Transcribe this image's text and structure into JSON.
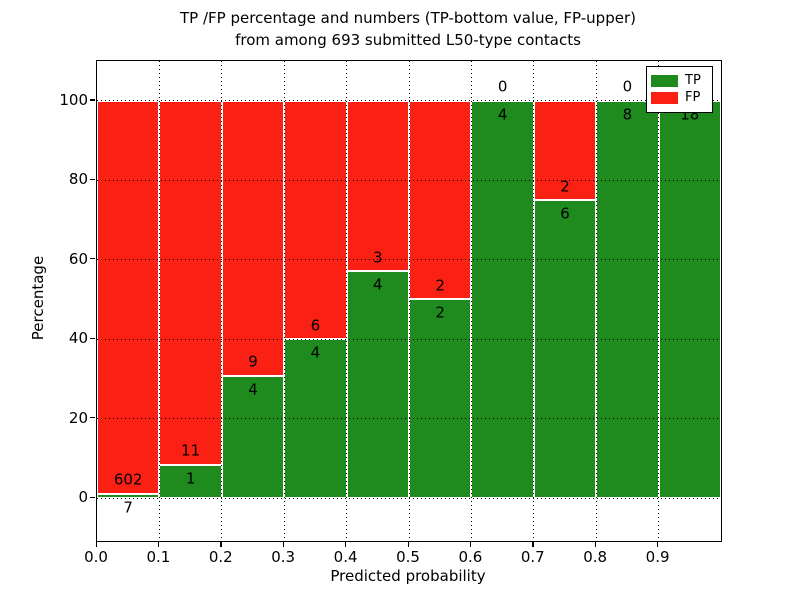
{
  "title": {
    "line1": "TP /FP percentage and numbers (TP-bottom value, FP-upper)",
    "line2": "from among 693 submitted L50-type contacts"
  },
  "axes": {
    "xlabel": "Predicted probability",
    "ylabel": "Percentage"
  },
  "colors": {
    "tp_green": "#1f8b1f",
    "fp_red": "#fb2014",
    "bar_edge": "#ffffff",
    "grid": "#000000"
  },
  "chart_data": {
    "type": "bar",
    "stacked": true,
    "title": "TP /FP percentage and numbers (TP-bottom value, FP-upper) from among 693 submitted L50-type contacts",
    "xlabel": "Predicted probability",
    "ylabel": "Percentage",
    "total_contacts": 693,
    "bin_edges": [
      0.0,
      0.1,
      0.2,
      0.3,
      0.4,
      0.5,
      0.6,
      0.7,
      0.8,
      0.9,
      1.0
    ],
    "categories": [
      "0.0-0.1",
      "0.1-0.2",
      "0.2-0.3",
      "0.3-0.4",
      "0.4-0.5",
      "0.5-0.6",
      "0.6-0.7",
      "0.7-0.8",
      "0.8-0.9",
      "0.9-1.0"
    ],
    "series": [
      {
        "name": "TP",
        "color": "#1f8b1f",
        "counts": [
          7,
          1,
          4,
          4,
          4,
          2,
          4,
          6,
          8,
          18
        ]
      },
      {
        "name": "FP",
        "color": "#fb2014",
        "counts": [
          602,
          11,
          9,
          6,
          3,
          2,
          0,
          2,
          0,
          0
        ]
      }
    ],
    "tp_percent": [
      1.1,
      8.3,
      30.8,
      40.0,
      57.1,
      50.0,
      100.0,
      75.0,
      100.0,
      100.0
    ],
    "annotation_note": "TP count printed below the TP/FP boundary, FP count printed above it",
    "x_tick_values": [
      0.0,
      0.1,
      0.2,
      0.3,
      0.4,
      0.5,
      0.6,
      0.7,
      0.8,
      0.9
    ],
    "x_tick_labels": [
      "0.0",
      "0.1",
      "0.2",
      "0.3",
      "0.4",
      "0.5",
      "0.6",
      "0.7",
      "0.8",
      "0.9"
    ],
    "y_tick_values": [
      0,
      20,
      40,
      60,
      80,
      100
    ],
    "y_tick_labels": [
      "0",
      "20",
      "40",
      "60",
      "80",
      "100"
    ],
    "xlim": [
      0.0,
      1.0
    ],
    "ylim": [
      -10.8,
      110.0
    ],
    "grid": "dotted",
    "legend_position": "upper right"
  }
}
